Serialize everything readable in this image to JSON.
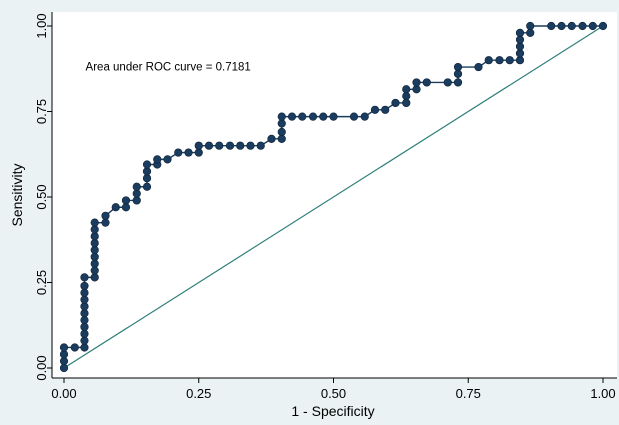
{
  "chart_data": {
    "type": "line",
    "title": "",
    "xlabel": "1 - Specificity",
    "ylabel": "Sensitivity",
    "xlim": [
      0,
      1
    ],
    "ylim": [
      0,
      1
    ],
    "xticks": [
      "0.00",
      "0.25",
      "0.50",
      "0.75",
      "1.00"
    ],
    "yticks": [
      "0.00",
      "0.25",
      "0.50",
      "0.75",
      "1.00"
    ],
    "grid": false,
    "annotations": [
      {
        "text": "Area under ROC curve = 0.7181",
        "x": 0.04,
        "y": 0.87
      }
    ],
    "colors": {
      "roc_curve": "#1a3c5e",
      "reference_line": "#2e7f78",
      "page_background": "#eaf2f3",
      "plot_background": "#ffffff"
    },
    "series": [
      {
        "name": "",
        "kind": "roc",
        "points": [
          [
            0.0,
            0.0
          ],
          [
            0.0,
            0.02
          ],
          [
            0.0,
            0.04
          ],
          [
            0.0,
            0.06
          ],
          [
            0.02,
            0.06
          ],
          [
            0.038,
            0.06
          ],
          [
            0.038,
            0.08
          ],
          [
            0.038,
            0.1
          ],
          [
            0.038,
            0.12
          ],
          [
            0.038,
            0.14
          ],
          [
            0.038,
            0.16
          ],
          [
            0.038,
            0.18
          ],
          [
            0.038,
            0.2
          ],
          [
            0.038,
            0.22
          ],
          [
            0.038,
            0.24
          ],
          [
            0.038,
            0.265
          ],
          [
            0.057,
            0.265
          ],
          [
            0.057,
            0.285
          ],
          [
            0.057,
            0.305
          ],
          [
            0.057,
            0.325
          ],
          [
            0.057,
            0.345
          ],
          [
            0.057,
            0.365
          ],
          [
            0.057,
            0.385
          ],
          [
            0.057,
            0.405
          ],
          [
            0.057,
            0.425
          ],
          [
            0.077,
            0.425
          ],
          [
            0.077,
            0.445
          ],
          [
            0.096,
            0.47
          ],
          [
            0.115,
            0.47
          ],
          [
            0.115,
            0.49
          ],
          [
            0.135,
            0.49
          ],
          [
            0.135,
            0.51
          ],
          [
            0.135,
            0.53
          ],
          [
            0.154,
            0.53
          ],
          [
            0.154,
            0.555
          ],
          [
            0.154,
            0.575
          ],
          [
            0.154,
            0.595
          ],
          [
            0.173,
            0.595
          ],
          [
            0.173,
            0.61
          ],
          [
            0.192,
            0.61
          ],
          [
            0.212,
            0.63
          ],
          [
            0.231,
            0.63
          ],
          [
            0.25,
            0.63
          ],
          [
            0.25,
            0.65
          ],
          [
            0.269,
            0.65
          ],
          [
            0.288,
            0.65
          ],
          [
            0.308,
            0.65
          ],
          [
            0.327,
            0.65
          ],
          [
            0.346,
            0.65
          ],
          [
            0.365,
            0.65
          ],
          [
            0.385,
            0.67
          ],
          [
            0.404,
            0.67
          ],
          [
            0.404,
            0.69
          ],
          [
            0.404,
            0.715
          ],
          [
            0.404,
            0.735
          ],
          [
            0.423,
            0.735
          ],
          [
            0.442,
            0.735
          ],
          [
            0.462,
            0.735
          ],
          [
            0.481,
            0.735
          ],
          [
            0.5,
            0.735
          ],
          [
            0.538,
            0.735
          ],
          [
            0.558,
            0.735
          ],
          [
            0.577,
            0.755
          ],
          [
            0.596,
            0.755
          ],
          [
            0.615,
            0.775
          ],
          [
            0.635,
            0.775
          ],
          [
            0.635,
            0.795
          ],
          [
            0.635,
            0.815
          ],
          [
            0.654,
            0.815
          ],
          [
            0.654,
            0.835
          ],
          [
            0.673,
            0.835
          ],
          [
            0.712,
            0.835
          ],
          [
            0.731,
            0.835
          ],
          [
            0.731,
            0.86
          ],
          [
            0.731,
            0.88
          ],
          [
            0.769,
            0.88
          ],
          [
            0.788,
            0.9
          ],
          [
            0.808,
            0.9
          ],
          [
            0.827,
            0.9
          ],
          [
            0.846,
            0.9
          ],
          [
            0.846,
            0.92
          ],
          [
            0.846,
            0.94
          ],
          [
            0.846,
            0.96
          ],
          [
            0.846,
            0.98
          ],
          [
            0.865,
            0.98
          ],
          [
            0.865,
            1.0
          ],
          [
            0.904,
            1.0
          ],
          [
            0.923,
            1.0
          ],
          [
            0.942,
            1.0
          ],
          [
            0.962,
            1.0
          ],
          [
            0.981,
            1.0
          ],
          [
            1.0,
            1.0
          ]
        ]
      },
      {
        "name": "",
        "kind": "reference",
        "points": [
          [
            0,
            0
          ],
          [
            1,
            1
          ]
        ]
      }
    ]
  }
}
